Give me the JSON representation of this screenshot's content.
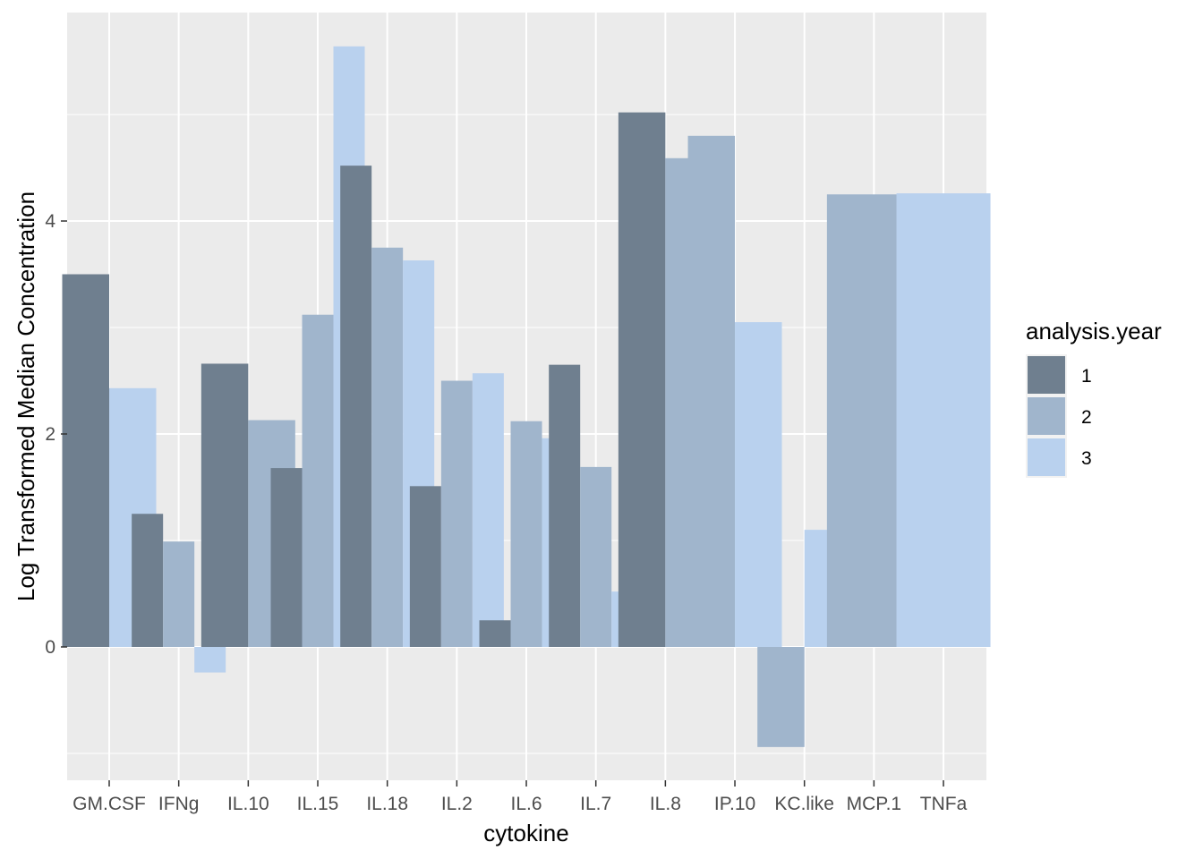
{
  "chart_data": {
    "type": "bar",
    "xlabel": "cytokine",
    "ylabel": "Log Transformed Median Concentration",
    "categories": [
      "GM.CSF",
      "IFNg",
      "IL.10",
      "IL.15",
      "IL.18",
      "IL.2",
      "IL.6",
      "IL.7",
      "IL.8",
      "IP.10",
      "KC.like",
      "MCP.1",
      "TNFa"
    ],
    "y_ticks": [
      0,
      2,
      4
    ],
    "y_tick_labels": [
      "0",
      "2",
      "4"
    ],
    "ylim": [
      -1.25,
      6.0
    ],
    "grid": true,
    "legend": {
      "title": "analysis.year",
      "placement": "right",
      "entries": [
        {
          "label": "1",
          "color": "#6f7f8f"
        },
        {
          "label": "2",
          "color": "#a0b5cc"
        },
        {
          "label": "3",
          "color": "#b9d1ee"
        }
      ]
    },
    "series": [
      {
        "name": "1",
        "color": "#6f7f8f",
        "values": [
          3.5,
          1.25,
          2.66,
          1.68,
          4.52,
          1.51,
          0.25,
          2.65,
          5.02,
          null,
          null,
          null,
          null
        ]
      },
      {
        "name": "2",
        "color": "#a0b5cc",
        "values": [
          null,
          0.99,
          2.13,
          3.12,
          3.75,
          2.5,
          2.12,
          1.69,
          4.59,
          4.8,
          -0.94,
          4.25,
          null
        ]
      },
      {
        "name": "3",
        "color": "#b9d1ee",
        "values": [
          2.43,
          -0.24,
          null,
          5.64,
          3.63,
          2.57,
          1.96,
          0.52,
          null,
          3.05,
          1.1,
          null,
          4.26
        ]
      }
    ]
  }
}
